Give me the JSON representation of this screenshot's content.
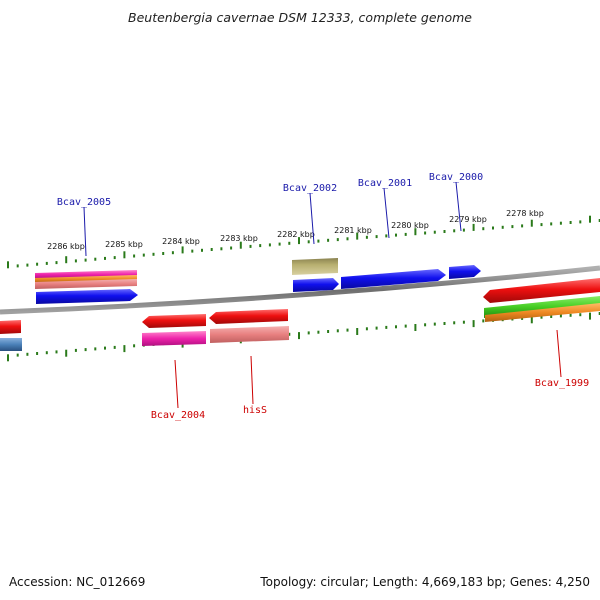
{
  "title": "Beutenbergia cavernae DSM 12333, complete genome",
  "footer": {
    "accession": "Accession: NC_012669",
    "summary": "Topology: circular; Length: 4,669,183 bp; Genes: 4,250"
  },
  "scale_labels": [
    "2286 kbp",
    "2285 kbp",
    "2284 kbp",
    "2283 kbp",
    "2282 kbp",
    "2281 kbp",
    "2280 kbp",
    "2279 kbp",
    "2278 kbp"
  ],
  "gene_labels": {
    "top": [
      "Bcav_2005",
      "Bcav_2002",
      "Bcav_2001",
      "Bcav_2000"
    ],
    "bottom": [
      "Bcav_2004",
      "hisS",
      "Bcav_1999"
    ]
  },
  "colors": {
    "top_label": "#1a1aaa",
    "bottom_label": "#cc0000",
    "tick": "#2a7a1a",
    "backbone": "#808080",
    "blue": "#1010ee",
    "red": "#ee1010",
    "magenta": "#ee22aa",
    "salmon": "#e88080",
    "khaki": "#b8b070",
    "green": "#44cc22",
    "orange": "#ee8822",
    "steel": "#4a80b8"
  }
}
